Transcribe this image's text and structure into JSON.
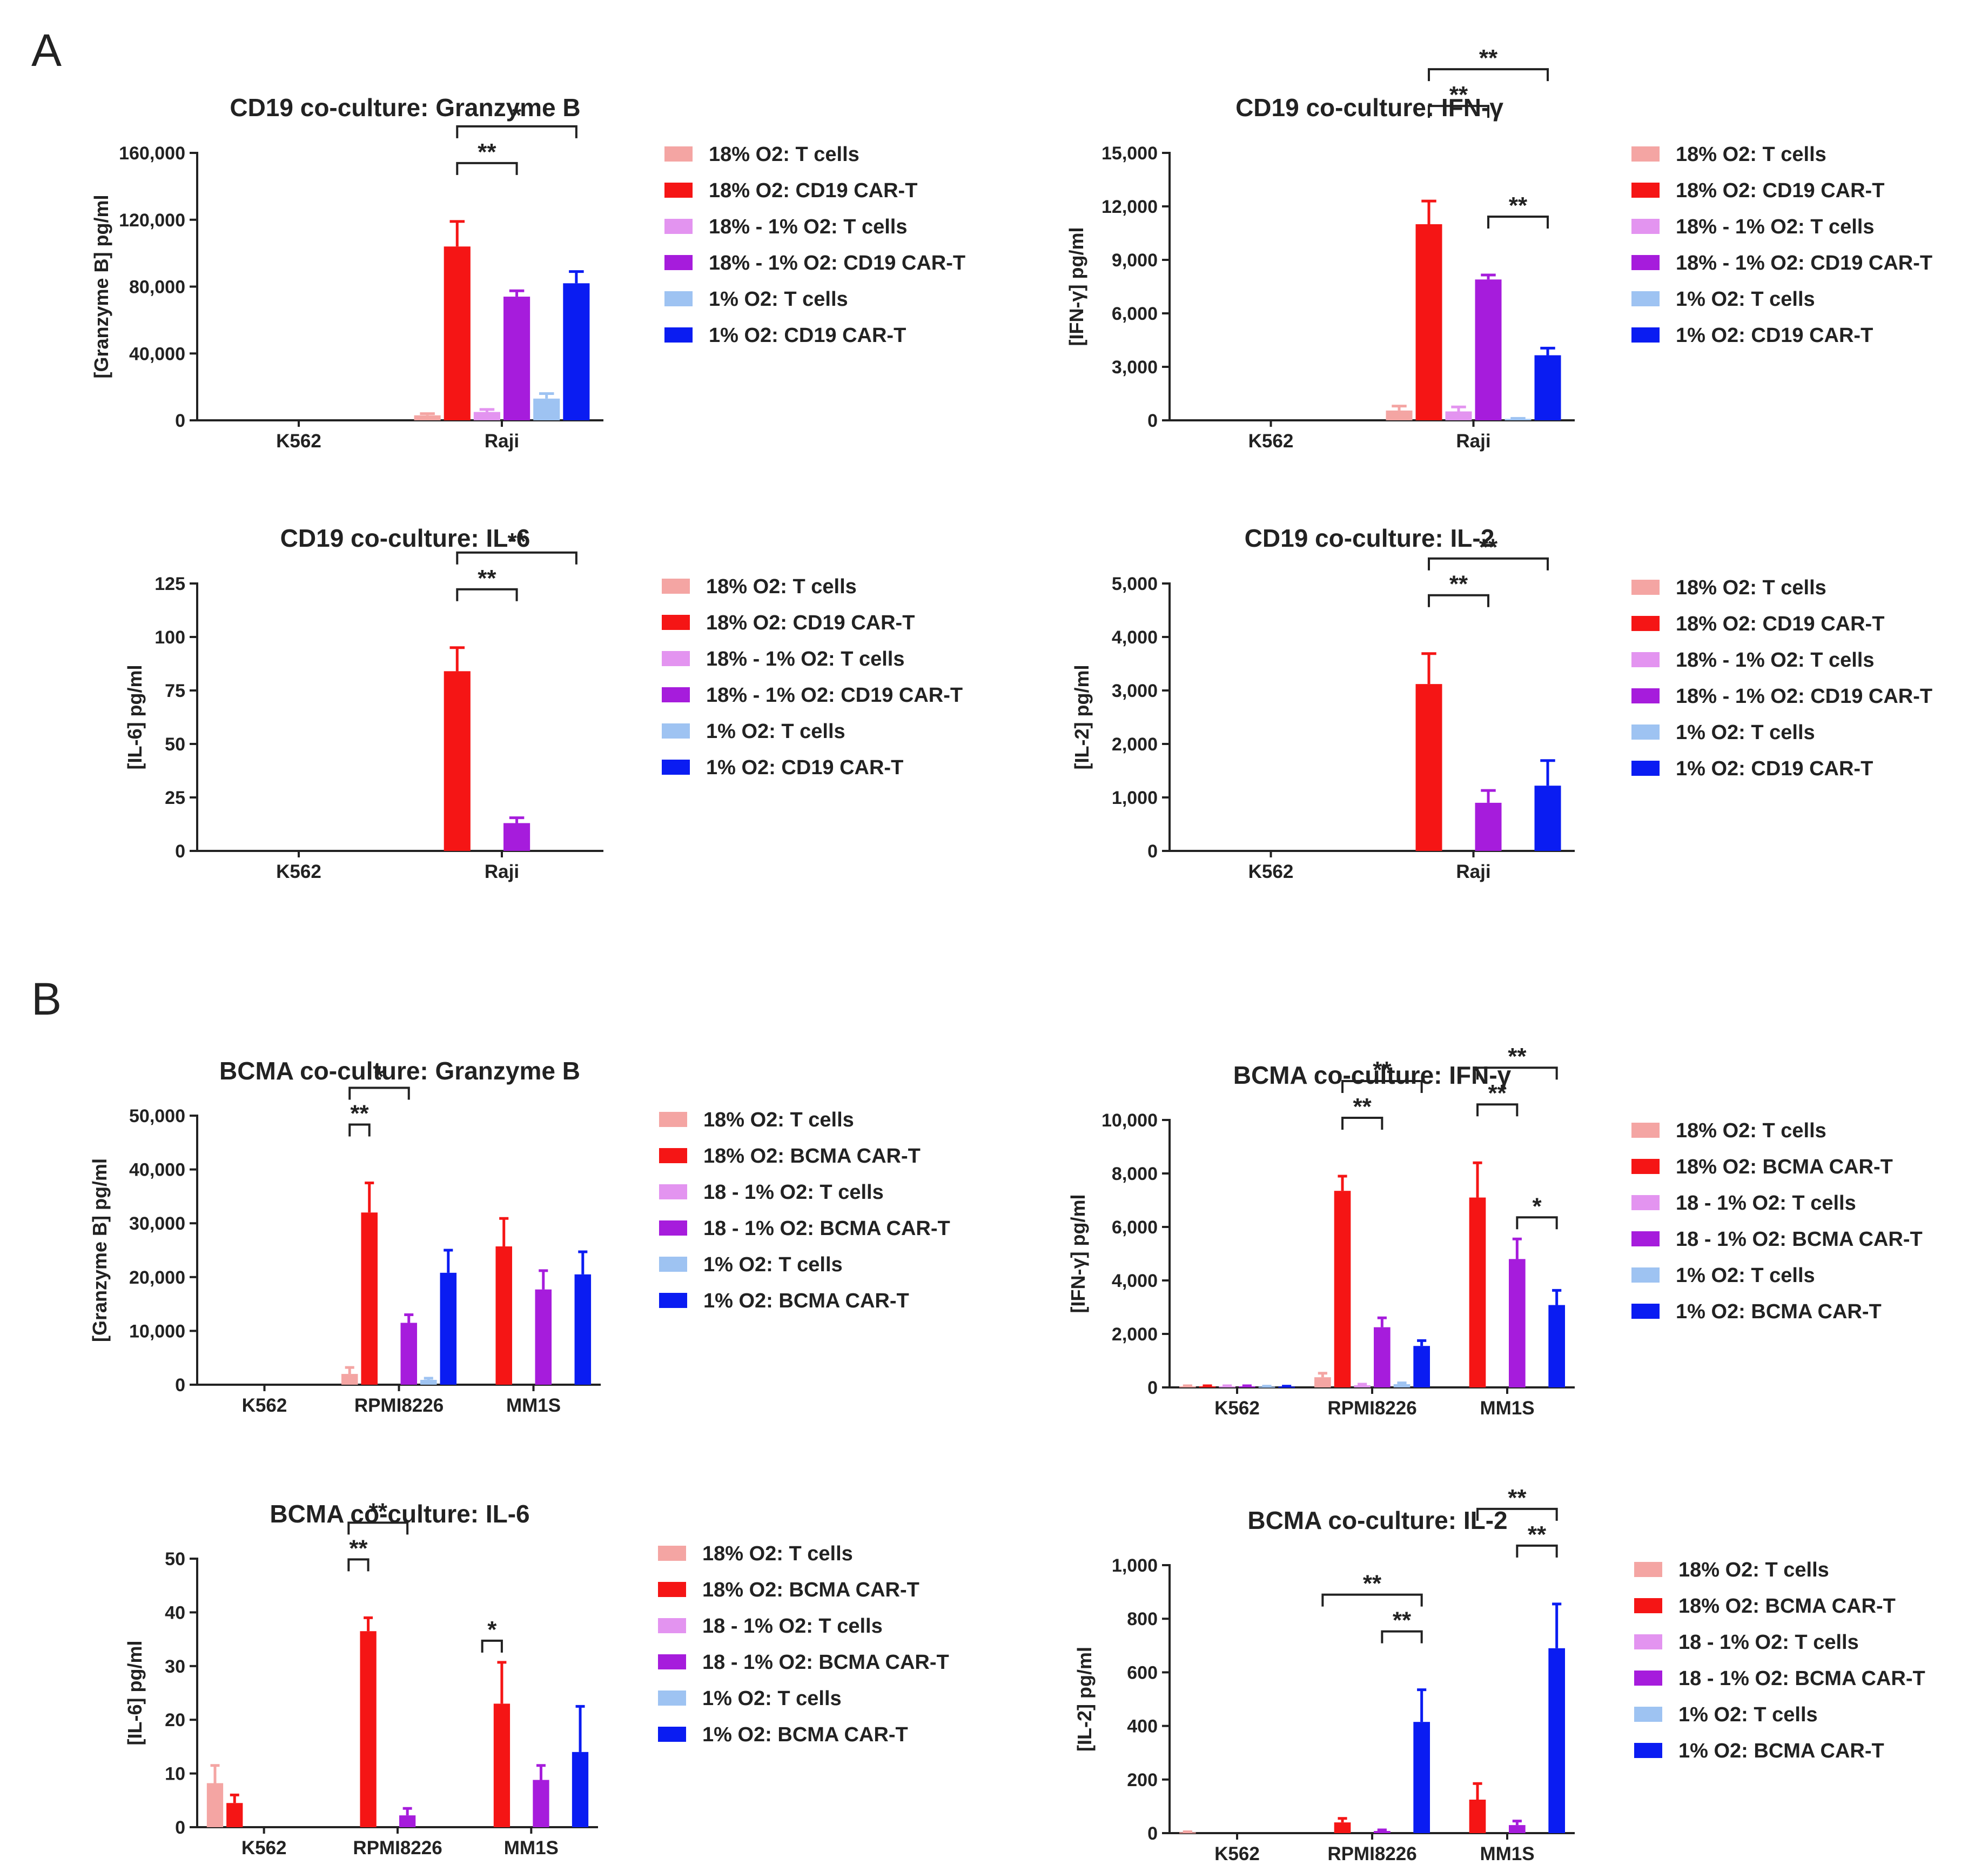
{
  "panels": {
    "A": "A",
    "B": "B"
  },
  "colors": {
    "t18": "#f4a5a3",
    "car18": "#f51515",
    "t18_1": "#e394f0",
    "car18_1": "#a61cdc",
    "t1": "#9ec3f2",
    "car1": "#0a1cf2"
  },
  "chart_data": [
    {
      "type": "bar",
      "title": "CD19 co-culture: Granzyme B",
      "ylabel": "[Granzyme B] pg/ml",
      "ylim": [
        0,
        160000
      ],
      "yticks": [
        0,
        40000,
        80000,
        120000,
        160000
      ],
      "ytick_labels": [
        "0",
        "40,000",
        "80,000",
        "120,000",
        "160,000"
      ],
      "categories": [
        "K562",
        "Raji"
      ],
      "series": [
        {
          "name": "18% O2: T cells",
          "color": "t18",
          "values": [
            0,
            3000
          ],
          "errors": [
            0,
            1000
          ]
        },
        {
          "name": "18% O2: CD19 CAR-T",
          "color": "car18",
          "values": [
            0,
            104000
          ],
          "errors": [
            0,
            15000
          ]
        },
        {
          "name": "18% - 1% O2: T cells",
          "color": "t18_1",
          "values": [
            0,
            5000
          ],
          "errors": [
            0,
            1500
          ]
        },
        {
          "name": "18% - 1% O2: CD19 CAR-T",
          "color": "car18_1",
          "values": [
            0,
            74000
          ],
          "errors": [
            0,
            3500
          ]
        },
        {
          "name": "1% O2: T cells",
          "color": "t1",
          "values": [
            0,
            13000
          ],
          "errors": [
            0,
            3000
          ]
        },
        {
          "name": "1% O2: CD19 CAR-T",
          "color": "car1",
          "values": [
            0,
            82000
          ],
          "errors": [
            0,
            7000
          ]
        }
      ],
      "significance": [
        {
          "cat": 1,
          "from": 1,
          "to": 5,
          "label": "*",
          "level": 2
        },
        {
          "cat": 1,
          "from": 1,
          "to": 3,
          "label": "**",
          "level": 1
        }
      ]
    },
    {
      "type": "bar",
      "title": "CD19 co-culture: IFN-γ",
      "ylabel": "[IFN-γ] pg/ml",
      "ylim": [
        0,
        15000
      ],
      "yticks": [
        0,
        3000,
        6000,
        9000,
        12000,
        15000
      ],
      "ytick_labels": [
        "0",
        "3,000",
        "6,000",
        "9,000",
        "12,000",
        "15,000"
      ],
      "categories": [
        "K562",
        "Raji"
      ],
      "series": [
        {
          "name": "18% O2: T cells",
          "color": "t18",
          "values": [
            0,
            550
          ],
          "errors": [
            0,
            250
          ]
        },
        {
          "name": "18% O2: CD19 CAR-T",
          "color": "car18",
          "values": [
            0,
            11000
          ],
          "errors": [
            0,
            1300
          ]
        },
        {
          "name": "18% - 1% O2: T cells",
          "color": "t18_1",
          "values": [
            0,
            500
          ],
          "errors": [
            0,
            250
          ]
        },
        {
          "name": "18% - 1% O2: CD19 CAR-T",
          "color": "car18_1",
          "values": [
            0,
            7900
          ],
          "errors": [
            0,
            250
          ]
        },
        {
          "name": "1% O2: T cells",
          "color": "t1",
          "values": [
            0,
            80
          ],
          "errors": [
            0,
            30
          ]
        },
        {
          "name": "1% O2: CD19 CAR-T",
          "color": "car1",
          "values": [
            0,
            3650
          ],
          "errors": [
            0,
            400
          ]
        }
      ],
      "significance": [
        {
          "cat": 1,
          "from": 1,
          "to": 5,
          "label": "**",
          "level": 3
        },
        {
          "cat": 1,
          "from": 1,
          "to": 3,
          "label": "**",
          "level": 2
        },
        {
          "cat": 1,
          "from": 3,
          "to": 5,
          "label": "**",
          "level": 1
        }
      ]
    },
    {
      "type": "bar",
      "title": "CD19 co-culture: IL-6",
      "ylabel": "[IL-6] pg/ml",
      "ylim": [
        0,
        125
      ],
      "yticks": [
        0,
        25,
        50,
        75,
        100,
        125
      ],
      "ytick_labels": [
        "0",
        "25",
        "50",
        "75",
        "100",
        "125"
      ],
      "categories": [
        "K562",
        "Raji"
      ],
      "series": [
        {
          "name": "18% O2: T cells",
          "color": "t18",
          "values": [
            0,
            0
          ],
          "errors": [
            0,
            0
          ]
        },
        {
          "name": "18% O2: CD19 CAR-T",
          "color": "car18",
          "values": [
            0,
            84
          ],
          "errors": [
            0,
            11
          ]
        },
        {
          "name": "18% - 1% O2: T cells",
          "color": "t18_1",
          "values": [
            0,
            0
          ],
          "errors": [
            0,
            0
          ]
        },
        {
          "name": "18% - 1% O2: CD19 CAR-T",
          "color": "car18_1",
          "values": [
            0,
            13
          ],
          "errors": [
            0,
            2.5
          ]
        },
        {
          "name": "1% O2: T cells",
          "color": "t1",
          "values": [
            0,
            0
          ],
          "errors": [
            0,
            0
          ]
        },
        {
          "name": "1% O2: CD19 CAR-T",
          "color": "car1",
          "values": [
            0,
            0
          ],
          "errors": [
            0,
            0
          ]
        }
      ],
      "significance": [
        {
          "cat": 1,
          "from": 1,
          "to": 5,
          "label": "**",
          "level": 2
        },
        {
          "cat": 1,
          "from": 1,
          "to": 3,
          "label": "**",
          "level": 1
        }
      ]
    },
    {
      "type": "bar",
      "title": "CD19 co-culture: IL-2",
      "ylabel": "[IL-2] pg/ml",
      "ylim": [
        0,
        5000
      ],
      "yticks": [
        0,
        1000,
        2000,
        3000,
        4000,
        5000
      ],
      "ytick_labels": [
        "0",
        "1,000",
        "2,000",
        "3,000",
        "4,000",
        "5,000"
      ],
      "categories": [
        "K562",
        "Raji"
      ],
      "series": [
        {
          "name": "18% O2: T cells",
          "color": "t18",
          "values": [
            0,
            0
          ],
          "errors": [
            0,
            0
          ]
        },
        {
          "name": "18% O2: CD19 CAR-T",
          "color": "car18",
          "values": [
            0,
            3120
          ],
          "errors": [
            0,
            570
          ]
        },
        {
          "name": "18% - 1% O2: T cells",
          "color": "t18_1",
          "values": [
            0,
            0
          ],
          "errors": [
            0,
            0
          ]
        },
        {
          "name": "18% - 1% O2: CD19 CAR-T",
          "color": "car18_1",
          "values": [
            0,
            900
          ],
          "errors": [
            0,
            230
          ]
        },
        {
          "name": "1% O2: T cells",
          "color": "t1",
          "values": [
            0,
            0
          ],
          "errors": [
            0,
            0
          ]
        },
        {
          "name": "1% O2: CD19 CAR-T",
          "color": "car1",
          "values": [
            0,
            1220
          ],
          "errors": [
            0,
            470
          ]
        }
      ],
      "significance": [
        {
          "cat": 1,
          "from": 1,
          "to": 5,
          "label": "**",
          "level": 2
        },
        {
          "cat": 1,
          "from": 1,
          "to": 3,
          "label": "**",
          "level": 1
        }
      ]
    },
    {
      "type": "bar",
      "title": "BCMA co-culture: Granzyme B",
      "ylabel": "[Granzyme B] pg/ml",
      "ylim": [
        0,
        50000
      ],
      "yticks": [
        0,
        10000,
        20000,
        30000,
        40000,
        50000
      ],
      "ytick_labels": [
        "0",
        "10,000",
        "20,000",
        "30,000",
        "40,000",
        "50,000"
      ],
      "categories": [
        "K562",
        "RPMI8226",
        "MM1S"
      ],
      "series": [
        {
          "name": "18% O2: T cells",
          "color": "t18",
          "values": [
            0,
            2000,
            0
          ],
          "errors": [
            0,
            1200,
            0
          ]
        },
        {
          "name": "18% O2: BCMA CAR-T",
          "color": "car18",
          "values": [
            0,
            32000,
            25700
          ],
          "errors": [
            0,
            5500,
            5200
          ]
        },
        {
          "name": "18 - 1% O2: T cells",
          "color": "t18_1",
          "values": [
            0,
            0,
            0
          ],
          "errors": [
            0,
            0,
            0
          ]
        },
        {
          "name": "18 - 1% O2: BCMA CAR-T",
          "color": "car18_1",
          "values": [
            0,
            11500,
            17700
          ],
          "errors": [
            0,
            1500,
            3500
          ]
        },
        {
          "name": "1% O2: T cells",
          "color": "t1",
          "values": [
            0,
            900,
            0
          ],
          "errors": [
            0,
            300,
            0
          ]
        },
        {
          "name": "1% O2: BCMA CAR-T",
          "color": "car1",
          "values": [
            0,
            20800,
            20500
          ],
          "errors": [
            0,
            4200,
            4200
          ]
        }
      ],
      "significance": [
        {
          "cat": 1,
          "from": 0,
          "to": 3,
          "label": "*",
          "level": 2
        },
        {
          "cat": 1,
          "from": 0,
          "to": 1,
          "label": "**",
          "level": 1
        }
      ]
    },
    {
      "type": "bar",
      "title": "BCMA co-culture: IFN-γ",
      "ylabel": "[IFN-γ] pg/ml",
      "ylim": [
        0,
        10000
      ],
      "yticks": [
        0,
        2000,
        4000,
        6000,
        8000,
        10000
      ],
      "ytick_labels": [
        "0",
        "2,000",
        "4,000",
        "6,000",
        "8,000",
        "10,000"
      ],
      "categories": [
        "K562",
        "RPMI8226",
        "MM1S"
      ],
      "series": [
        {
          "name": "18% O2: T cells",
          "color": "t18",
          "values": [
            40,
            380,
            0
          ],
          "errors": [
            20,
            150,
            0
          ]
        },
        {
          "name": "18% O2: BCMA CAR-T",
          "color": "car18",
          "values": [
            40,
            7350,
            7100
          ],
          "errors": [
            20,
            550,
            1300
          ]
        },
        {
          "name": "18 - 1% O2: T cells",
          "color": "t18_1",
          "values": [
            40,
            80,
            0
          ],
          "errors": [
            20,
            40,
            0
          ]
        },
        {
          "name": "18 - 1% O2: BCMA CAR-T",
          "color": "car18_1",
          "values": [
            40,
            2250,
            4800
          ],
          "errors": [
            20,
            350,
            750
          ]
        },
        {
          "name": "1% O2: T cells",
          "color": "t1",
          "values": [
            30,
            120,
            0
          ],
          "errors": [
            15,
            50,
            0
          ]
        },
        {
          "name": "1% O2: BCMA CAR-T",
          "color": "car1",
          "values": [
            30,
            1550,
            3080
          ],
          "errors": [
            15,
            200,
            550
          ]
        }
      ],
      "significance": [
        {
          "cat": 1,
          "from": 1,
          "to": 5,
          "label": "**",
          "level": 2
        },
        {
          "cat": 1,
          "from": 1,
          "to": 3,
          "label": "**",
          "level": 1
        },
        {
          "cat": 2,
          "from": 1,
          "to": 5,
          "label": "**",
          "level": 2
        },
        {
          "cat": 2,
          "from": 1,
          "to": 3,
          "label": "**",
          "level": 1
        },
        {
          "cat": 2,
          "from": 3,
          "to": 5,
          "label": "*",
          "level": 0
        }
      ]
    },
    {
      "type": "bar",
      "title": "BCMA co-culture: IL-6",
      "ylabel": "[IL-6] pg/ml",
      "ylim": [
        0,
        50
      ],
      "yticks": [
        0,
        10,
        20,
        30,
        40,
        50
      ],
      "ytick_labels": [
        "0",
        "10",
        "20",
        "30",
        "40",
        "50"
      ],
      "categories": [
        "K562",
        "RPMI8226",
        "MM1S"
      ],
      "series": [
        {
          "name": "18% O2: T cells",
          "color": "t18",
          "values": [
            8.2,
            0,
            0
          ],
          "errors": [
            3.3,
            0,
            0
          ]
        },
        {
          "name": "18% O2: BCMA CAR-T",
          "color": "car18",
          "values": [
            4.5,
            36.5,
            23
          ],
          "errors": [
            1.5,
            2.5,
            7.7
          ]
        },
        {
          "name": "18 - 1% O2: T cells",
          "color": "t18_1",
          "values": [
            0,
            0,
            0
          ],
          "errors": [
            0,
            0,
            0
          ]
        },
        {
          "name": "18 - 1% O2: BCMA CAR-T",
          "color": "car18_1",
          "values": [
            0,
            2.2,
            8.8
          ],
          "errors": [
            0,
            1.3,
            2.7
          ]
        },
        {
          "name": "1% O2: T cells",
          "color": "t1",
          "values": [
            0,
            0,
            0
          ],
          "errors": [
            0,
            0,
            0
          ]
        },
        {
          "name": "1% O2: BCMA CAR-T",
          "color": "car1",
          "values": [
            0,
            0,
            14
          ],
          "errors": [
            0,
            0,
            8.5
          ]
        }
      ],
      "significance": [
        {
          "cat": 1,
          "from": 0,
          "to": 3,
          "label": "**",
          "level": 2
        },
        {
          "cat": 1,
          "from": 0,
          "to": 1,
          "label": "**",
          "level": 1
        },
        {
          "cat": 2,
          "from": 0,
          "to": 1,
          "label": "*",
          "level": 0
        }
      ]
    },
    {
      "type": "bar",
      "title": "BCMA co-culture: IL-2",
      "ylabel": "[IL-2] pg/ml",
      "ylim": [
        0,
        1000
      ],
      "yticks": [
        0,
        200,
        400,
        600,
        800,
        1000
      ],
      "ytick_labels": [
        "0",
        "200",
        "400",
        "600",
        "800",
        "1,000"
      ],
      "categories": [
        "K562",
        "RPMI8226",
        "MM1S"
      ],
      "series": [
        {
          "name": "18% O2: T cells",
          "color": "t18",
          "values": [
            3,
            0,
            0
          ],
          "errors": [
            2,
            0,
            0
          ]
        },
        {
          "name": "18% O2: BCMA CAR-T",
          "color": "car18",
          "values": [
            0,
            40,
            125
          ],
          "errors": [
            0,
            15,
            60
          ]
        },
        {
          "name": "18 - 1% O2: T cells",
          "color": "t18_1",
          "values": [
            0,
            0,
            0
          ],
          "errors": [
            0,
            0,
            0
          ]
        },
        {
          "name": "18 - 1% O2: BCMA CAR-T",
          "color": "car18_1",
          "values": [
            0,
            8,
            30
          ],
          "errors": [
            0,
            4,
            15
          ]
        },
        {
          "name": "1% O2: T cells",
          "color": "t1",
          "values": [
            0,
            0,
            0
          ],
          "errors": [
            0,
            0,
            0
          ]
        },
        {
          "name": "1% O2: BCMA CAR-T",
          "color": "car1",
          "values": [
            0,
            415,
            690
          ],
          "errors": [
            0,
            120,
            165
          ]
        }
      ],
      "significance": [
        {
          "cat": 1,
          "from": 0,
          "to": 5,
          "label": "**",
          "level": 2
        },
        {
          "cat": 1,
          "from": 3,
          "to": 5,
          "label": "**",
          "level": 1
        },
        {
          "cat": 2,
          "from": 1,
          "to": 5,
          "label": "**",
          "level": 2
        },
        {
          "cat": 2,
          "from": 3,
          "to": 5,
          "label": "**",
          "level": 1
        }
      ]
    }
  ]
}
